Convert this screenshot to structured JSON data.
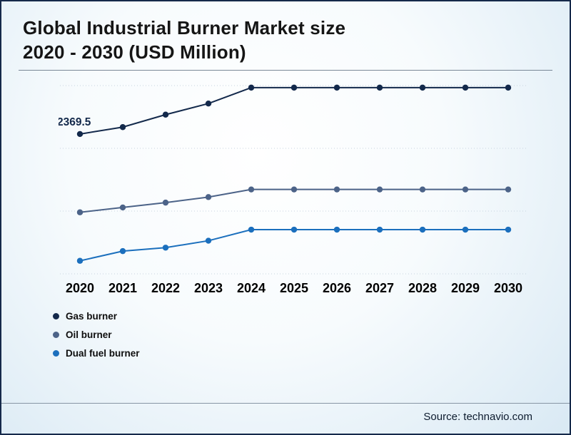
{
  "title": {
    "line1": "Global Industrial Burner Market size",
    "line2": "2020 - 2030 (USD Million)"
  },
  "source": "Source: technavio.com",
  "chart_data": {
    "type": "line",
    "title": "Global Industrial Burner Market size 2020 - 2030 (USD Million)",
    "categories": [
      "2020",
      "2021",
      "2022",
      "2023",
      "2024",
      "2025",
      "2026",
      "2027",
      "2028",
      "2029",
      "2030"
    ],
    "series": [
      {
        "name": "Gas burner",
        "color": "#13294b",
        "values": [
          2369.5,
          2389.5,
          2425.5,
          2457.5,
          2503.5,
          2503.5,
          2503.5,
          2503.5,
          2503.5,
          2503.5,
          2503.5
        ]
      },
      {
        "name": "Oil burner",
        "color": "#4c6388",
        "values": [
          2143.5,
          2157.5,
          2171.5,
          2187.5,
          2209.5,
          2209.5,
          2209.5,
          2209.5,
          2209.5,
          2209.5,
          2209.5
        ]
      },
      {
        "name": "Dual fuel burner",
        "color": "#1b6fbd",
        "values": [
          2003.5,
          2031.5,
          2041.5,
          2061.5,
          2093.5,
          2093.5,
          2093.5,
          2093.5,
          2093.5,
          2093.5,
          2093.5
        ]
      }
    ],
    "ylim": [
      1970,
      2530
    ],
    "grid": true,
    "legend_position": "bottom-left",
    "point_label": {
      "series_index": 0,
      "point_index": 0,
      "text": "2369.5"
    }
  }
}
